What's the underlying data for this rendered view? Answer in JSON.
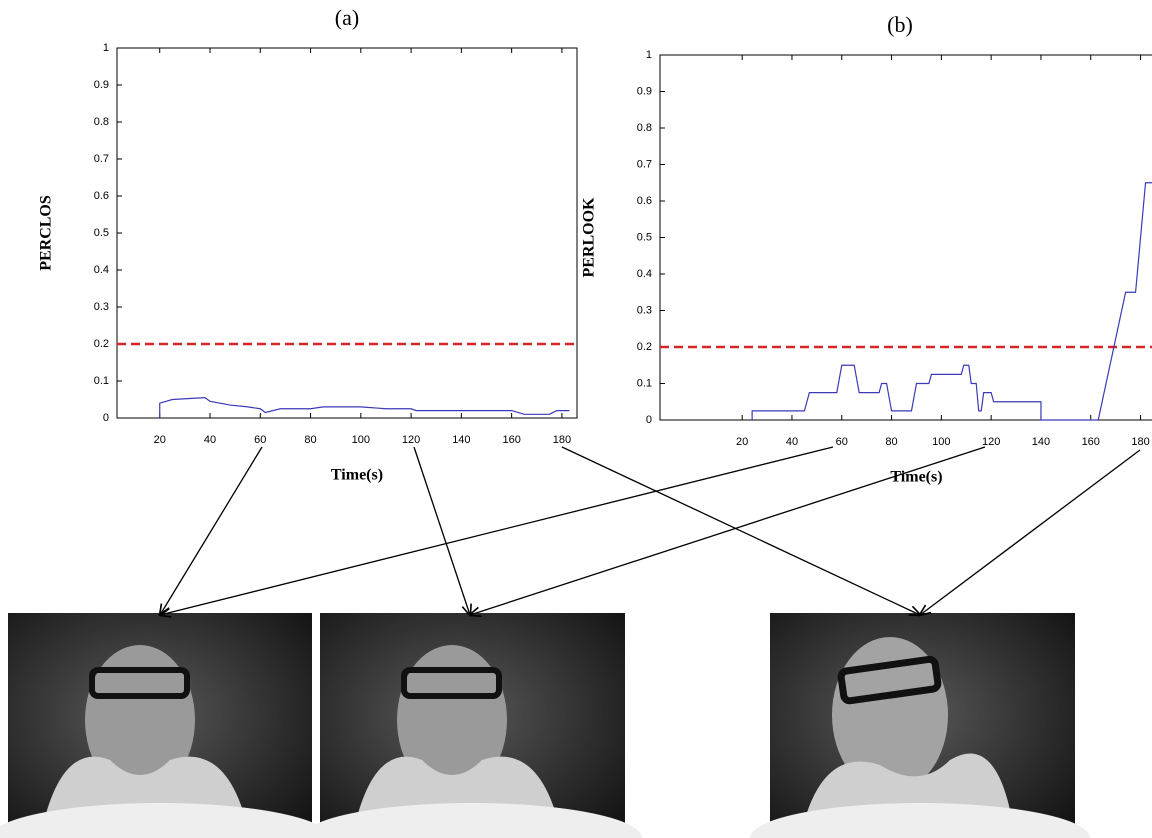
{
  "chart_data": [
    {
      "type": "line",
      "title": "(a)",
      "y_label": "PERCLOS",
      "x_label": "Time(s)",
      "xlim": [
        3,
        186
      ],
      "ylim": [
        0,
        1
      ],
      "xticks": [
        20,
        40,
        60,
        80,
        100,
        120,
        140,
        160,
        180
      ],
      "yticks": [
        0,
        0.1,
        0.2,
        0.3,
        0.4,
        0.5,
        0.6,
        0.7,
        0.8,
        0.9,
        1
      ],
      "threshold": {
        "value": 0.2,
        "color": "#d62728"
      },
      "series": [
        {
          "color": "#3a3ab8",
          "x": [
            20,
            20,
            25,
            38,
            40,
            48,
            55,
            60,
            62,
            68,
            80,
            85,
            100,
            110,
            120,
            122,
            160,
            165,
            175,
            178,
            183
          ],
          "values": [
            0,
            0.04,
            0.05,
            0.055,
            0.045,
            0.035,
            0.03,
            0.025,
            0.015,
            0.025,
            0.025,
            0.03,
            0.03,
            0.025,
            0.025,
            0.02,
            0.02,
            0.01,
            0.01,
            0.02,
            0.02
          ]
        }
      ]
    },
    {
      "type": "line",
      "title": "(b)",
      "y_label": "PERLOOK",
      "x_label": "Time(s)",
      "xlim": [
        -13,
        185
      ],
      "ylim": [
        0,
        1
      ],
      "xticks": [
        20,
        40,
        60,
        80,
        100,
        120,
        140,
        160,
        180
      ],
      "yticks": [
        0,
        0.1,
        0.2,
        0.3,
        0.4,
        0.5,
        0.6,
        0.7,
        0.8,
        0.9,
        1
      ],
      "threshold": {
        "value": 0.2,
        "color": "#d62728"
      },
      "series": [
        {
          "color": "#3a3ab8",
          "x": [
            24,
            24,
            45,
            47,
            58,
            60,
            65,
            67,
            75,
            76,
            78,
            80,
            88,
            90,
            95,
            96,
            108,
            109,
            111,
            112,
            114,
            115,
            116,
            117,
            120,
            121,
            140,
            140,
            163,
            174,
            178,
            182,
            185
          ],
          "values": [
            0,
            0.025,
            0.025,
            0.075,
            0.075,
            0.15,
            0.15,
            0.075,
            0.075,
            0.1,
            0.1,
            0.025,
            0.025,
            0.1,
            0.1,
            0.125,
            0.125,
            0.15,
            0.15,
            0.1,
            0.1,
            0.025,
            0.025,
            0.075,
            0.075,
            0.05,
            0.05,
            0,
            0,
            0.35,
            0.35,
            0.65,
            0.65
          ]
        }
      ]
    }
  ]
}
